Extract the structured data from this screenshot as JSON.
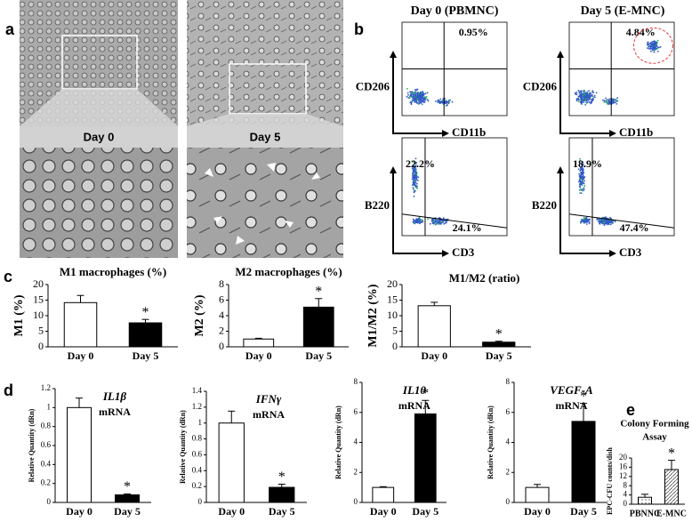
{
  "panel_labels": [
    "a",
    "b",
    "c",
    "d",
    "e"
  ],
  "microscopy": {
    "labels": [
      "Day 0",
      "Day 5"
    ]
  },
  "flow": {
    "columns": [
      "Day 0 (PBMNC)",
      "Day 5 (E-MNC)"
    ],
    "plots": [
      {
        "y_label": "CD206",
        "x_label": "CD11b",
        "gates": [
          "0.95%"
        ]
      },
      {
        "y_label": "CD206",
        "x_label": "CD11b",
        "gates": [
          "4.84%"
        ]
      },
      {
        "y_label": "B220",
        "x_label": "CD3",
        "gates": [
          "22.2%",
          "24.1%"
        ]
      },
      {
        "y_label": "B220",
        "x_label": "CD3",
        "gates": [
          "18.9%",
          "47.4%"
        ]
      }
    ]
  },
  "chart_data": [
    {
      "type": "bar",
      "title": "M1 macrophages (%)",
      "y_label": "M1 (%)",
      "categories": [
        "Day 0",
        "Day 5"
      ],
      "values": [
        14.2,
        7.7
      ],
      "errors": [
        2.3,
        1.1
      ],
      "colors": [
        "#ffffff",
        "#000000"
      ],
      "ylim": [
        0,
        20
      ],
      "yticks": [
        0,
        5,
        10,
        15,
        20
      ],
      "annotations": [
        {
          "text": "*",
          "category": "Day 5"
        }
      ]
    },
    {
      "type": "bar",
      "title": "M2 macrophages (%)",
      "y_label": "M2 (%)",
      "categories": [
        "Day 0",
        "Day 5"
      ],
      "values": [
        1.0,
        5.1
      ],
      "errors": [
        0.1,
        1.1
      ],
      "colors": [
        "#ffffff",
        "#000000"
      ],
      "ylim": [
        0,
        8
      ],
      "yticks": [
        0,
        2,
        4,
        6,
        8
      ],
      "annotations": [
        {
          "text": "*",
          "category": "Day 5"
        }
      ]
    },
    {
      "type": "bar",
      "title": "M1/M2 (ratio)",
      "y_label": "M1/M2 (%)",
      "categories": [
        "Day 0",
        "Day 5"
      ],
      "values": [
        13.2,
        1.5
      ],
      "errors": [
        1.1,
        0.3
      ],
      "colors": [
        "#ffffff",
        "#000000"
      ],
      "ylim": [
        0,
        20
      ],
      "yticks": [
        0,
        5,
        10,
        15,
        20
      ],
      "annotations": [
        {
          "text": "*",
          "category": "Day 5"
        }
      ]
    },
    {
      "type": "bar",
      "title": "IL1β",
      "subtitle": "mRNA",
      "y_label": "Relative Quantity (dRn)",
      "categories": [
        "Day 0",
        "Day 5"
      ],
      "values": [
        1.0,
        0.08
      ],
      "errors": [
        0.1,
        0.01
      ],
      "colors": [
        "#ffffff",
        "#000000"
      ],
      "ylim": [
        0,
        1.2
      ],
      "yticks": [
        0,
        0.2,
        0.4,
        0.6,
        0.8,
        1,
        1.2
      ],
      "annotations": [
        {
          "text": "*",
          "category": "Day 5"
        }
      ]
    },
    {
      "type": "bar",
      "title": "IFNγ",
      "subtitle": "mRNA",
      "y_label": "Relative Quantity (dRn)",
      "categories": [
        "Day 0",
        "Day 5"
      ],
      "values": [
        1.0,
        0.19
      ],
      "errors": [
        0.15,
        0.04
      ],
      "colors": [
        "#ffffff",
        "#000000"
      ],
      "ylim": [
        0,
        1.4
      ],
      "yticks": [
        0,
        0.2,
        0.4,
        0.6,
        0.8,
        1,
        1.2,
        1.4
      ],
      "annotations": [
        {
          "text": "*",
          "category": "Day 5"
        }
      ]
    },
    {
      "type": "bar",
      "title": "IL10",
      "subtitle": "mRNA",
      "y_label": "Relative Quantity (dRn)",
      "categories": [
        "Day 0",
        "Day 5"
      ],
      "values": [
        1.0,
        5.9
      ],
      "errors": [
        0.05,
        0.9
      ],
      "colors": [
        "#ffffff",
        "#000000"
      ],
      "ylim": [
        0,
        8
      ],
      "yticks": [
        0,
        2,
        4,
        6,
        8
      ],
      "annotations": [
        {
          "text": "*",
          "category": "Day 5"
        }
      ]
    },
    {
      "type": "bar",
      "title": "VEGF-A",
      "subtitle": "mRNA",
      "y_label": "Relative Quantity (dRn)",
      "categories": [
        "Day 0",
        "Day 5"
      ],
      "values": [
        1.0,
        5.4
      ],
      "errors": [
        0.2,
        1.2
      ],
      "colors": [
        "#ffffff",
        "#000000"
      ],
      "ylim": [
        0,
        8
      ],
      "yticks": [
        0,
        2,
        4,
        6,
        8
      ],
      "annotations": [
        {
          "text": "*",
          "category": "Day 5"
        }
      ]
    },
    {
      "type": "bar",
      "title_lines": [
        "Colony Forming",
        "Assay"
      ],
      "y_label": "EPC-CFU counts/dish",
      "categories": [
        "PBNNC",
        "E-MNC"
      ],
      "values": [
        3,
        15
      ],
      "errors": [
        1.3,
        4
      ],
      "patterns": [
        "dotted",
        "hatched"
      ],
      "ylim": [
        0,
        20
      ],
      "yticks": [
        0,
        4,
        8,
        12,
        16,
        20
      ],
      "annotations": [
        {
          "text": "*",
          "category": "E-MNC"
        }
      ]
    }
  ]
}
